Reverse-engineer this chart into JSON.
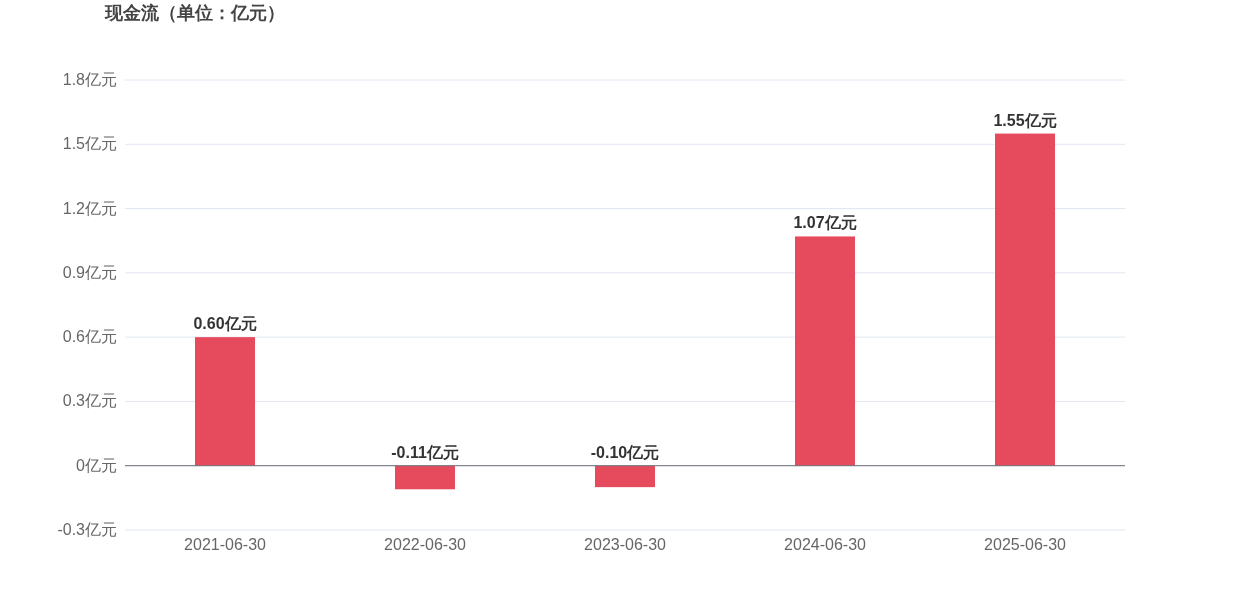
{
  "chart_data": {
    "type": "bar",
    "title": "现金流（单位：亿元）",
    "categories": [
      "2021-06-30",
      "2022-06-30",
      "2023-06-30",
      "2024-06-30",
      "2025-06-30"
    ],
    "values": [
      0.6,
      -0.11,
      -0.1,
      1.07,
      1.55
    ],
    "value_labels": [
      "0.60亿元",
      "-0.11亿元",
      "-0.10亿元",
      "1.07亿元",
      "1.55亿元"
    ],
    "color": "#e64b5d",
    "ylim": [
      -0.3,
      1.8
    ],
    "yticks": [
      {
        "value": -0.3,
        "label": "-0.3亿元"
      },
      {
        "value": 0,
        "label": "0亿元"
      },
      {
        "value": 0.3,
        "label": "0.3亿元"
      },
      {
        "value": 0.6,
        "label": "0.6亿元"
      },
      {
        "value": 0.9,
        "label": "0.9亿元"
      },
      {
        "value": 1.2,
        "label": "1.2亿元"
      },
      {
        "value": 1.5,
        "label": "1.5亿元"
      },
      {
        "value": 1.8,
        "label": "1.8亿元"
      }
    ],
    "grid": "y"
  }
}
